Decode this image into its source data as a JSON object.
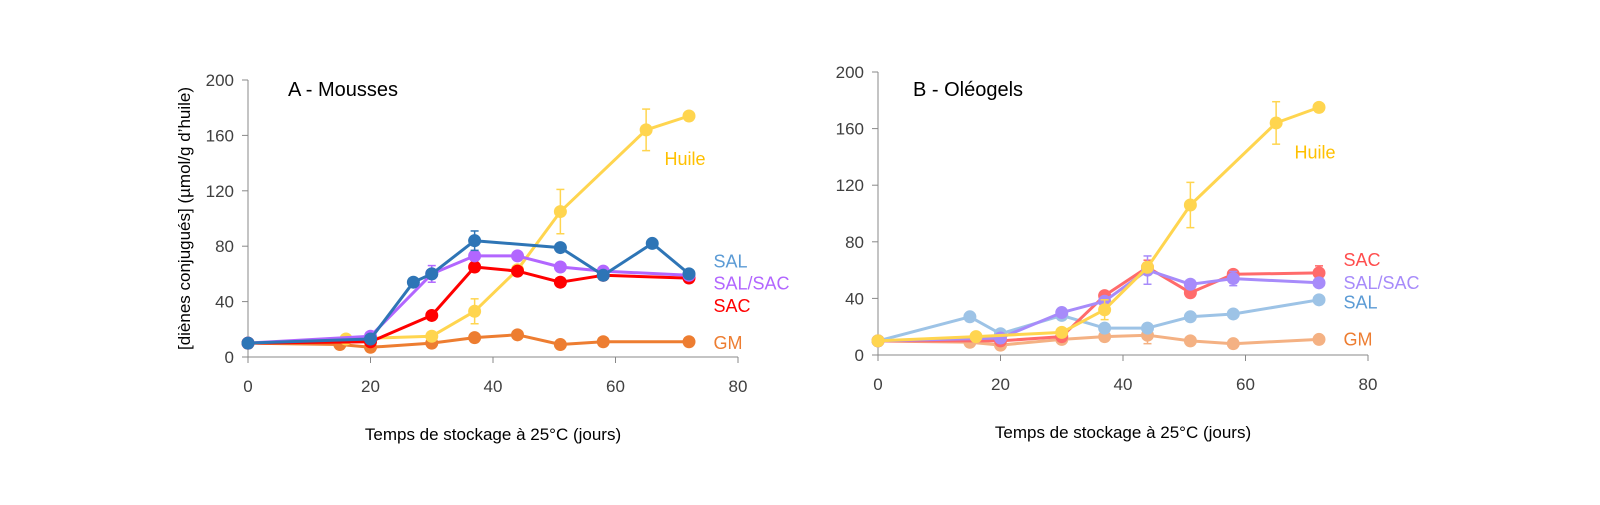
{
  "chart_data": [
    {
      "type": "line",
      "panel_title": "A - Mousses",
      "xlabel": "Temps de stockage à 25°C (jours)",
      "ylabel": "[diènes conjugués] (µmol/g d’huile)",
      "xlim": [
        0,
        80
      ],
      "ylim": [
        0,
        200
      ],
      "xticks": [
        0,
        20,
        40,
        60,
        80
      ],
      "yticks": [
        0,
        40,
        80,
        120,
        160,
        200
      ],
      "grid": false,
      "series": [
        {
          "name": "GM",
          "color": "#ED7D31",
          "x": [
            0,
            15,
            20,
            30,
            37,
            44,
            51,
            58,
            72
          ],
          "y": [
            10,
            9,
            7,
            10,
            14,
            16,
            9,
            11,
            11
          ],
          "err": [
            0,
            0,
            0,
            0,
            0,
            0,
            0,
            0,
            0
          ]
        },
        {
          "name": "Huile",
          "color": "#FFD54F",
          "x": [
            0,
            16,
            30,
            37,
            44,
            51,
            65,
            72
          ],
          "y": [
            10,
            13,
            15,
            33,
            63,
            105,
            164,
            174
          ],
          "err": [
            0,
            0,
            0,
            9,
            0,
            16,
            15,
            0
          ]
        },
        {
          "name": "SAC",
          "color": "#FF0000",
          "x": [
            0,
            20,
            30,
            37,
            44,
            51,
            58,
            72
          ],
          "y": [
            10,
            11,
            30,
            65,
            62,
            54,
            59,
            57
          ],
          "err": [
            0,
            0,
            0,
            0,
            0,
            0,
            0,
            0
          ]
        },
        {
          "name": "SAL/SAC",
          "color": "#B266FF",
          "x": [
            0,
            20,
            30,
            37,
            44,
            51,
            58,
            72
          ],
          "y": [
            10,
            15,
            60,
            73,
            73,
            65,
            62,
            59
          ],
          "err": [
            0,
            0,
            6,
            0,
            0,
            0,
            0,
            0
          ]
        },
        {
          "name": "SAL",
          "color": "#2E75B6",
          "x": [
            0,
            20,
            27,
            30,
            37,
            51,
            58,
            66,
            72
          ],
          "y": [
            10,
            13,
            54,
            60,
            84,
            79,
            59,
            82,
            60
          ],
          "err": [
            0,
            0,
            0,
            0,
            7,
            0,
            0,
            0,
            0
          ]
        }
      ],
      "labels": [
        {
          "text": "Huile",
          "color": "#FFC000",
          "x": 68,
          "y": 143
        },
        {
          "text": "SAL",
          "color": "#5B9BD5",
          "x": 76,
          "y": 69
        },
        {
          "text": "SAL/SAC",
          "color": "#B266FF",
          "x": 76,
          "y": 53
        },
        {
          "text": "SAC",
          "color": "#FF0000",
          "x": 76,
          "y": 37
        },
        {
          "text": "GM",
          "color": "#ED7D31",
          "x": 76,
          "y": 10
        }
      ]
    },
    {
      "type": "line",
      "panel_title": "B - Oléogels",
      "xlabel": "Temps de stockage à 25°C (jours)",
      "ylabel": "",
      "xlim": [
        0,
        80
      ],
      "ylim": [
        0,
        200
      ],
      "xticks": [
        0,
        20,
        40,
        60,
        80
      ],
      "yticks": [
        0,
        40,
        80,
        120,
        160,
        200
      ],
      "grid": false,
      "series": [
        {
          "name": "GM",
          "color": "#F4B183",
          "x": [
            0,
            15,
            20,
            30,
            37,
            44,
            51,
            58,
            72
          ],
          "y": [
            10,
            9,
            7,
            11,
            13,
            14,
            10,
            8,
            11
          ],
          "err": [
            0,
            0,
            0,
            0,
            0,
            6,
            0,
            0,
            0
          ]
        },
        {
          "name": "SAL",
          "color": "#9DC3E6",
          "x": [
            0,
            15,
            20,
            30,
            37,
            44,
            51,
            58,
            72
          ],
          "y": [
            10,
            27,
            15,
            28,
            19,
            19,
            27,
            29,
            39
          ],
          "err": [
            0,
            0,
            0,
            0,
            0,
            0,
            0,
            0,
            3
          ]
        },
        {
          "name": "SAC",
          "color": "#FF6B6B",
          "x": [
            0,
            20,
            30,
            37,
            44,
            51,
            58,
            72
          ],
          "y": [
            10,
            10,
            13,
            42,
            62,
            44,
            57,
            58
          ],
          "err": [
            0,
            0,
            0,
            0,
            5,
            0,
            0,
            5
          ]
        },
        {
          "name": "SAL/SAC",
          "color": "#A78BFA",
          "x": [
            0,
            20,
            30,
            37,
            44,
            51,
            58,
            72
          ],
          "y": [
            10,
            12,
            30,
            38,
            60,
            50,
            54,
            51
          ],
          "err": [
            0,
            0,
            0,
            0,
            10,
            0,
            5,
            0
          ]
        },
        {
          "name": "Huile",
          "color": "#FFD54F",
          "x": [
            0,
            16,
            30,
            37,
            44,
            51,
            65,
            72
          ],
          "y": [
            10,
            13,
            16,
            32,
            62,
            106,
            164,
            175
          ],
          "err": [
            0,
            0,
            0,
            7,
            0,
            16,
            15,
            0
          ]
        }
      ],
      "labels": [
        {
          "text": "Huile",
          "color": "#FFC000",
          "x": 68,
          "y": 143
        },
        {
          "text": "SAC",
          "color": "#FF4D4D",
          "x": 76,
          "y": 67
        },
        {
          "text": "SAL/SAC",
          "color": "#A78BFA",
          "x": 76,
          "y": 51
        },
        {
          "text": "SAL",
          "color": "#5B9BD5",
          "x": 76,
          "y": 37
        },
        {
          "text": "GM",
          "color": "#ED7D31",
          "x": 76,
          "y": 11
        }
      ]
    }
  ]
}
